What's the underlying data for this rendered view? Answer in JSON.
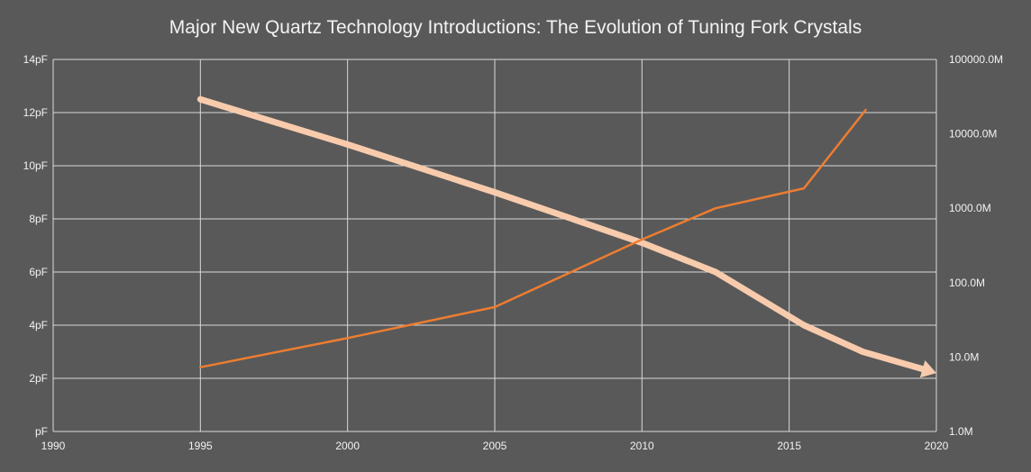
{
  "chart_data": {
    "type": "line",
    "title": "Major New Quartz Technology Introductions: The Evolution of Tuning Fork Crystals",
    "x_ticks": [
      "1990",
      "1995",
      "2000",
      "2005",
      "2010",
      "2015",
      "2020"
    ],
    "y_left_ticks": [
      "pF",
      "2pF",
      "4pF",
      "6pF",
      "8pF",
      "10pF",
      "12pF",
      "14pF"
    ],
    "y_right_ticks": [
      "1.0M",
      "10.0M",
      "100.0M",
      "1000.0M",
      "10000.0M",
      "100000.0M"
    ],
    "xlim": [
      1990,
      2020
    ],
    "ylim_left": [
      0,
      14
    ],
    "ylim_right": [
      1,
      100000
    ],
    "y_right_scale": "log",
    "grid": true,
    "series": [
      {
        "axis": "left",
        "color": "#f8cbad",
        "style": "thick-arrow",
        "x": [
          1995,
          2000,
          2005,
          2010,
          2012.5,
          2015.5,
          2017.5,
          2020
        ],
        "y": [
          12.5,
          10.8,
          9.0,
          7.1,
          6.0,
          4.0,
          3.0,
          2.2
        ]
      },
      {
        "axis": "right",
        "color": "#ed7d31",
        "style": "thin",
        "x": [
          1995,
          2000,
          2005,
          2010,
          2012.5,
          2015.5,
          2017.6
        ],
        "y": [
          7.3,
          18,
          47,
          380,
          1000,
          1850,
          21000
        ]
      }
    ]
  }
}
